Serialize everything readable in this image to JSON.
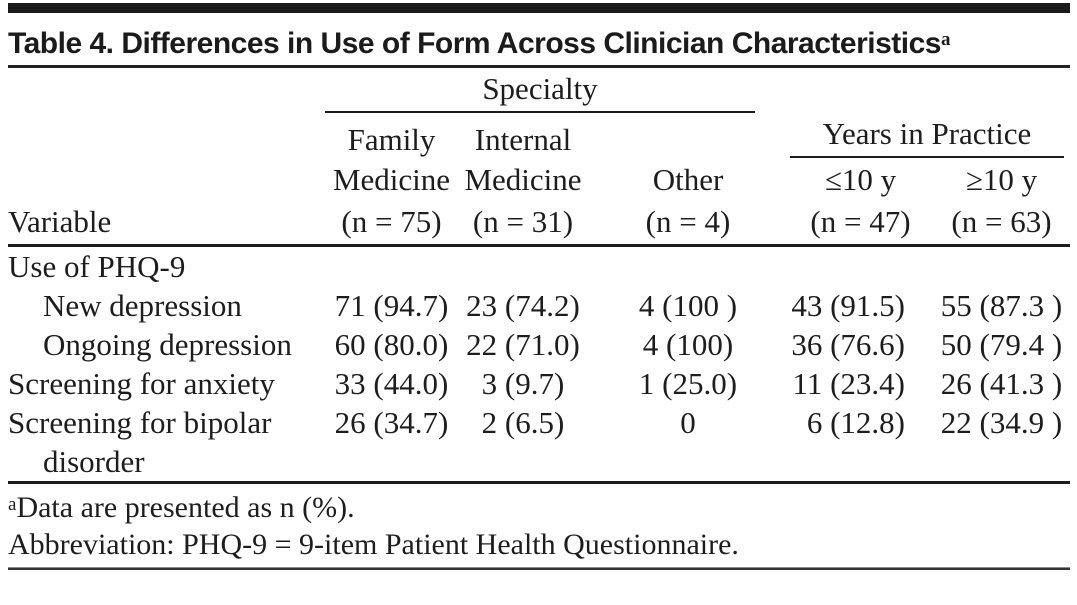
{
  "title": {
    "text": "Table 4. Differences in Use of Form Across Clinician Characteristics",
    "superscript": "a"
  },
  "table": {
    "stub_header": "Variable",
    "spanners": {
      "specialty": "Specialty",
      "years": "Years in Practice"
    },
    "columns": [
      {
        "line1": "Family",
        "line2": "Medicine",
        "n": "(n = 75)"
      },
      {
        "line1": "Internal",
        "line2": "Medicine",
        "n": "(n = 31)"
      },
      {
        "line1": "",
        "line2": "Other",
        "n": "(n = 4)"
      },
      {
        "line1": "",
        "line2": "≤10 y",
        "n": "(n = 47)"
      },
      {
        "line1": "",
        "line2": "≥10 y",
        "n": "(n = 63)"
      }
    ],
    "rows": [
      {
        "label": "Use of PHQ-9",
        "values": [
          "",
          "",
          "",
          "",
          ""
        ]
      },
      {
        "label": "New depression",
        "values": [
          "71 (94.7)",
          "23 (74.2)",
          "4 (100 )",
          "43 (91.5)",
          "55 (87.3 )"
        ]
      },
      {
        "label": "Ongoing depression",
        "values": [
          "60 (80.0)",
          "22 (71.0)",
          "4 (100)",
          "36 (76.6)",
          "50 (79.4 )"
        ]
      },
      {
        "label": "Screening for anxiety",
        "values": [
          "33 (44.0)",
          "3 (9.7)",
          "1 (25.0)",
          "11 (23.4)",
          "26 (41.3 )"
        ]
      },
      {
        "label": "Screening for bipolar disorder",
        "values": [
          "26 (34.7)",
          "2 (6.5)",
          "0",
          "6 (12.8)",
          "22 (34.9 )"
        ]
      }
    ]
  },
  "footnotes": {
    "a_marker": "a",
    "a_text": "Data are presented as n (%).",
    "abbreviation": "Abbreviation: PHQ-9 = 9-item Patient Health Questionnaire."
  },
  "colors": {
    "text": "#1d1d1d",
    "rule": "#1c1c1c",
    "background": "#ffffff"
  }
}
